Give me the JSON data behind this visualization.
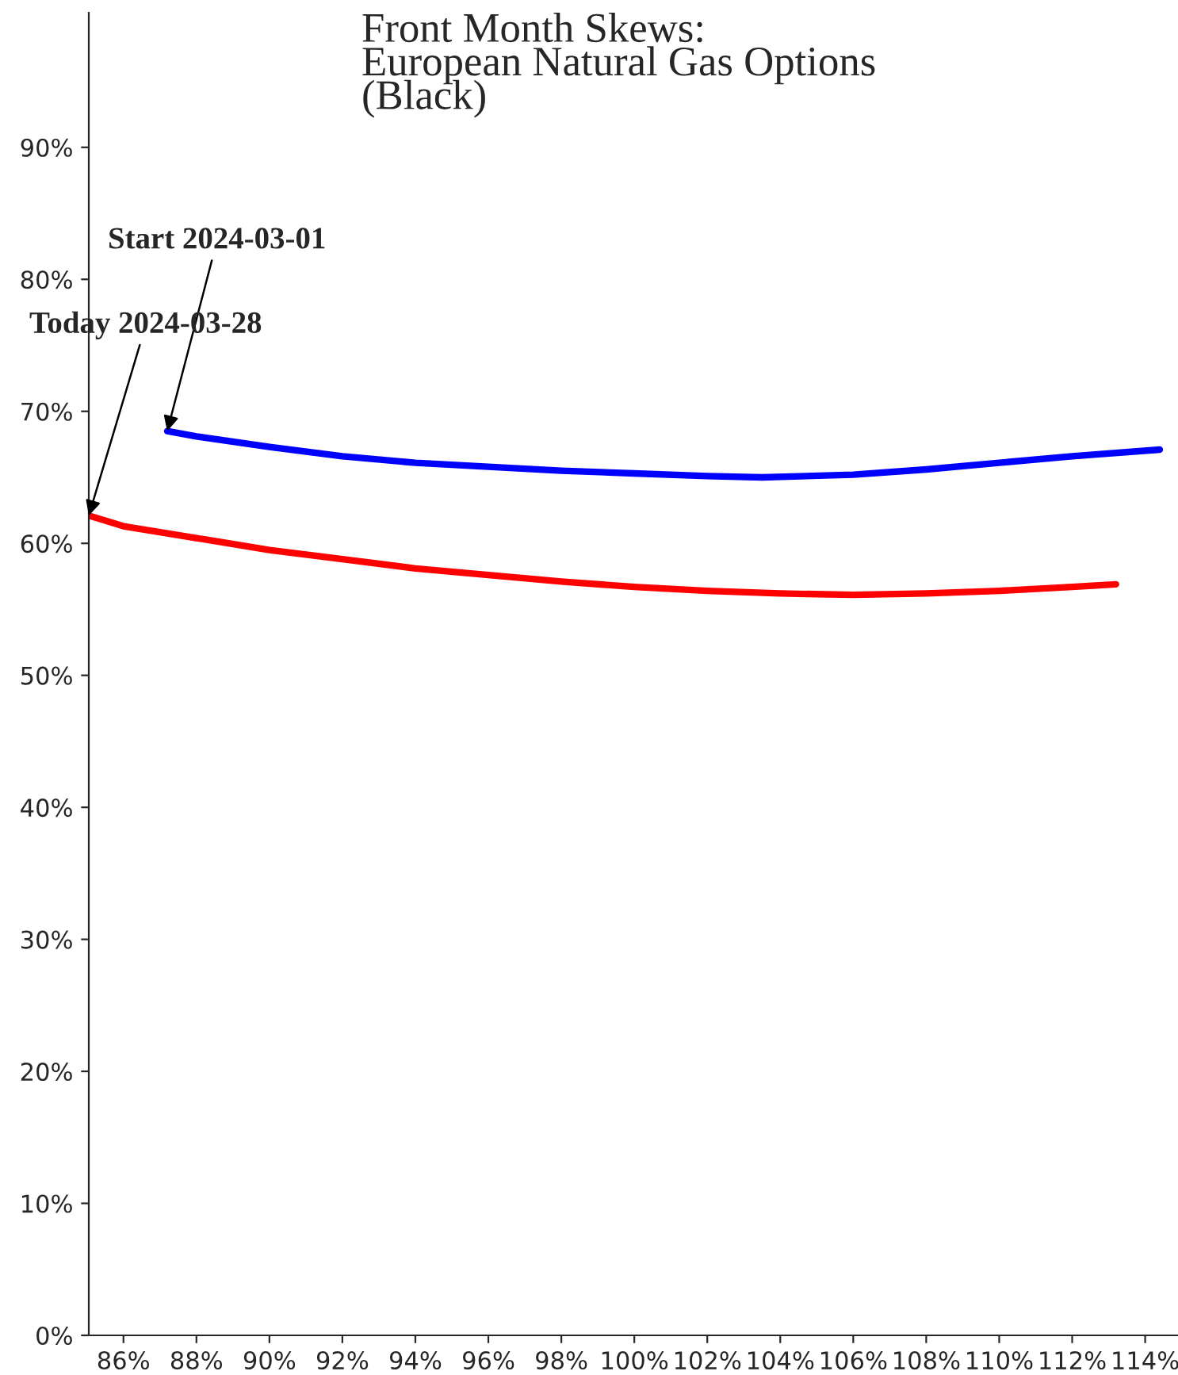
{
  "chart_data": {
    "type": "line",
    "title": "Front Month Skews:\nEuropean Natural Gas Options\n(Black)",
    "series": [
      {
        "color": "#0000ff",
        "x": [
          87.2,
          88,
          90,
          92,
          94,
          96,
          98,
          100,
          102,
          103.5,
          106,
          108,
          110,
          112,
          114.4
        ],
        "values": [
          68.5,
          68.1,
          67.3,
          66.6,
          66.1,
          65.8,
          65.5,
          65.3,
          65.1,
          65.0,
          65.2,
          65.6,
          66.1,
          66.6,
          67.1
        ]
      },
      {
        "color": "#ff0000",
        "x": [
          85.05,
          86,
          88,
          90,
          92,
          94,
          96,
          98,
          100,
          102,
          104,
          106,
          108,
          110,
          112,
          113.2
        ],
        "values": [
          62.1,
          61.3,
          60.4,
          59.5,
          58.8,
          58.1,
          57.6,
          57.1,
          56.7,
          56.4,
          56.2,
          56.1,
          56.2,
          56.4,
          56.7,
          56.9
        ]
      }
    ],
    "annotations": [
      {
        "text": "Start 2024-03-01",
        "x": 87.2,
        "y": 68.5
      },
      {
        "text": "Today 2024-03-28",
        "x": 85.05,
        "y": 62.1
      }
    ],
    "xlim": [
      85.05,
      114.9
    ],
    "ylim": [
      0,
      100.2
    ],
    "xticks": [
      {
        "value": 86,
        "label": "86%"
      },
      {
        "value": 88,
        "label": "88%"
      },
      {
        "value": 90,
        "label": "90%"
      },
      {
        "value": 92,
        "label": "92%"
      },
      {
        "value": 94,
        "label": "94%"
      },
      {
        "value": 96,
        "label": "96%"
      },
      {
        "value": 98,
        "label": "98%"
      },
      {
        "value": 100,
        "label": "100%"
      },
      {
        "value": 102,
        "label": "102%"
      },
      {
        "value": 104,
        "label": "104%"
      },
      {
        "value": 106,
        "label": "106%"
      },
      {
        "value": 108,
        "label": "108%"
      },
      {
        "value": 110,
        "label": "110%"
      },
      {
        "value": 112,
        "label": "112%"
      },
      {
        "value": 114,
        "label": "114%"
      }
    ],
    "yticks": [
      {
        "value": 0,
        "label": "0%"
      },
      {
        "value": 10,
        "label": "10%"
      },
      {
        "value": 20,
        "label": "20%"
      },
      {
        "value": 30,
        "label": "30%"
      },
      {
        "value": 40,
        "label": "40%"
      },
      {
        "value": 50,
        "label": "50%"
      },
      {
        "value": 60,
        "label": "60%"
      },
      {
        "value": 70,
        "label": "70%"
      },
      {
        "value": 80,
        "label": "80%"
      },
      {
        "value": 90,
        "label": "90%"
      }
    ],
    "grid": false,
    "legend": false,
    "line_style": "solid",
    "marker": "none"
  }
}
